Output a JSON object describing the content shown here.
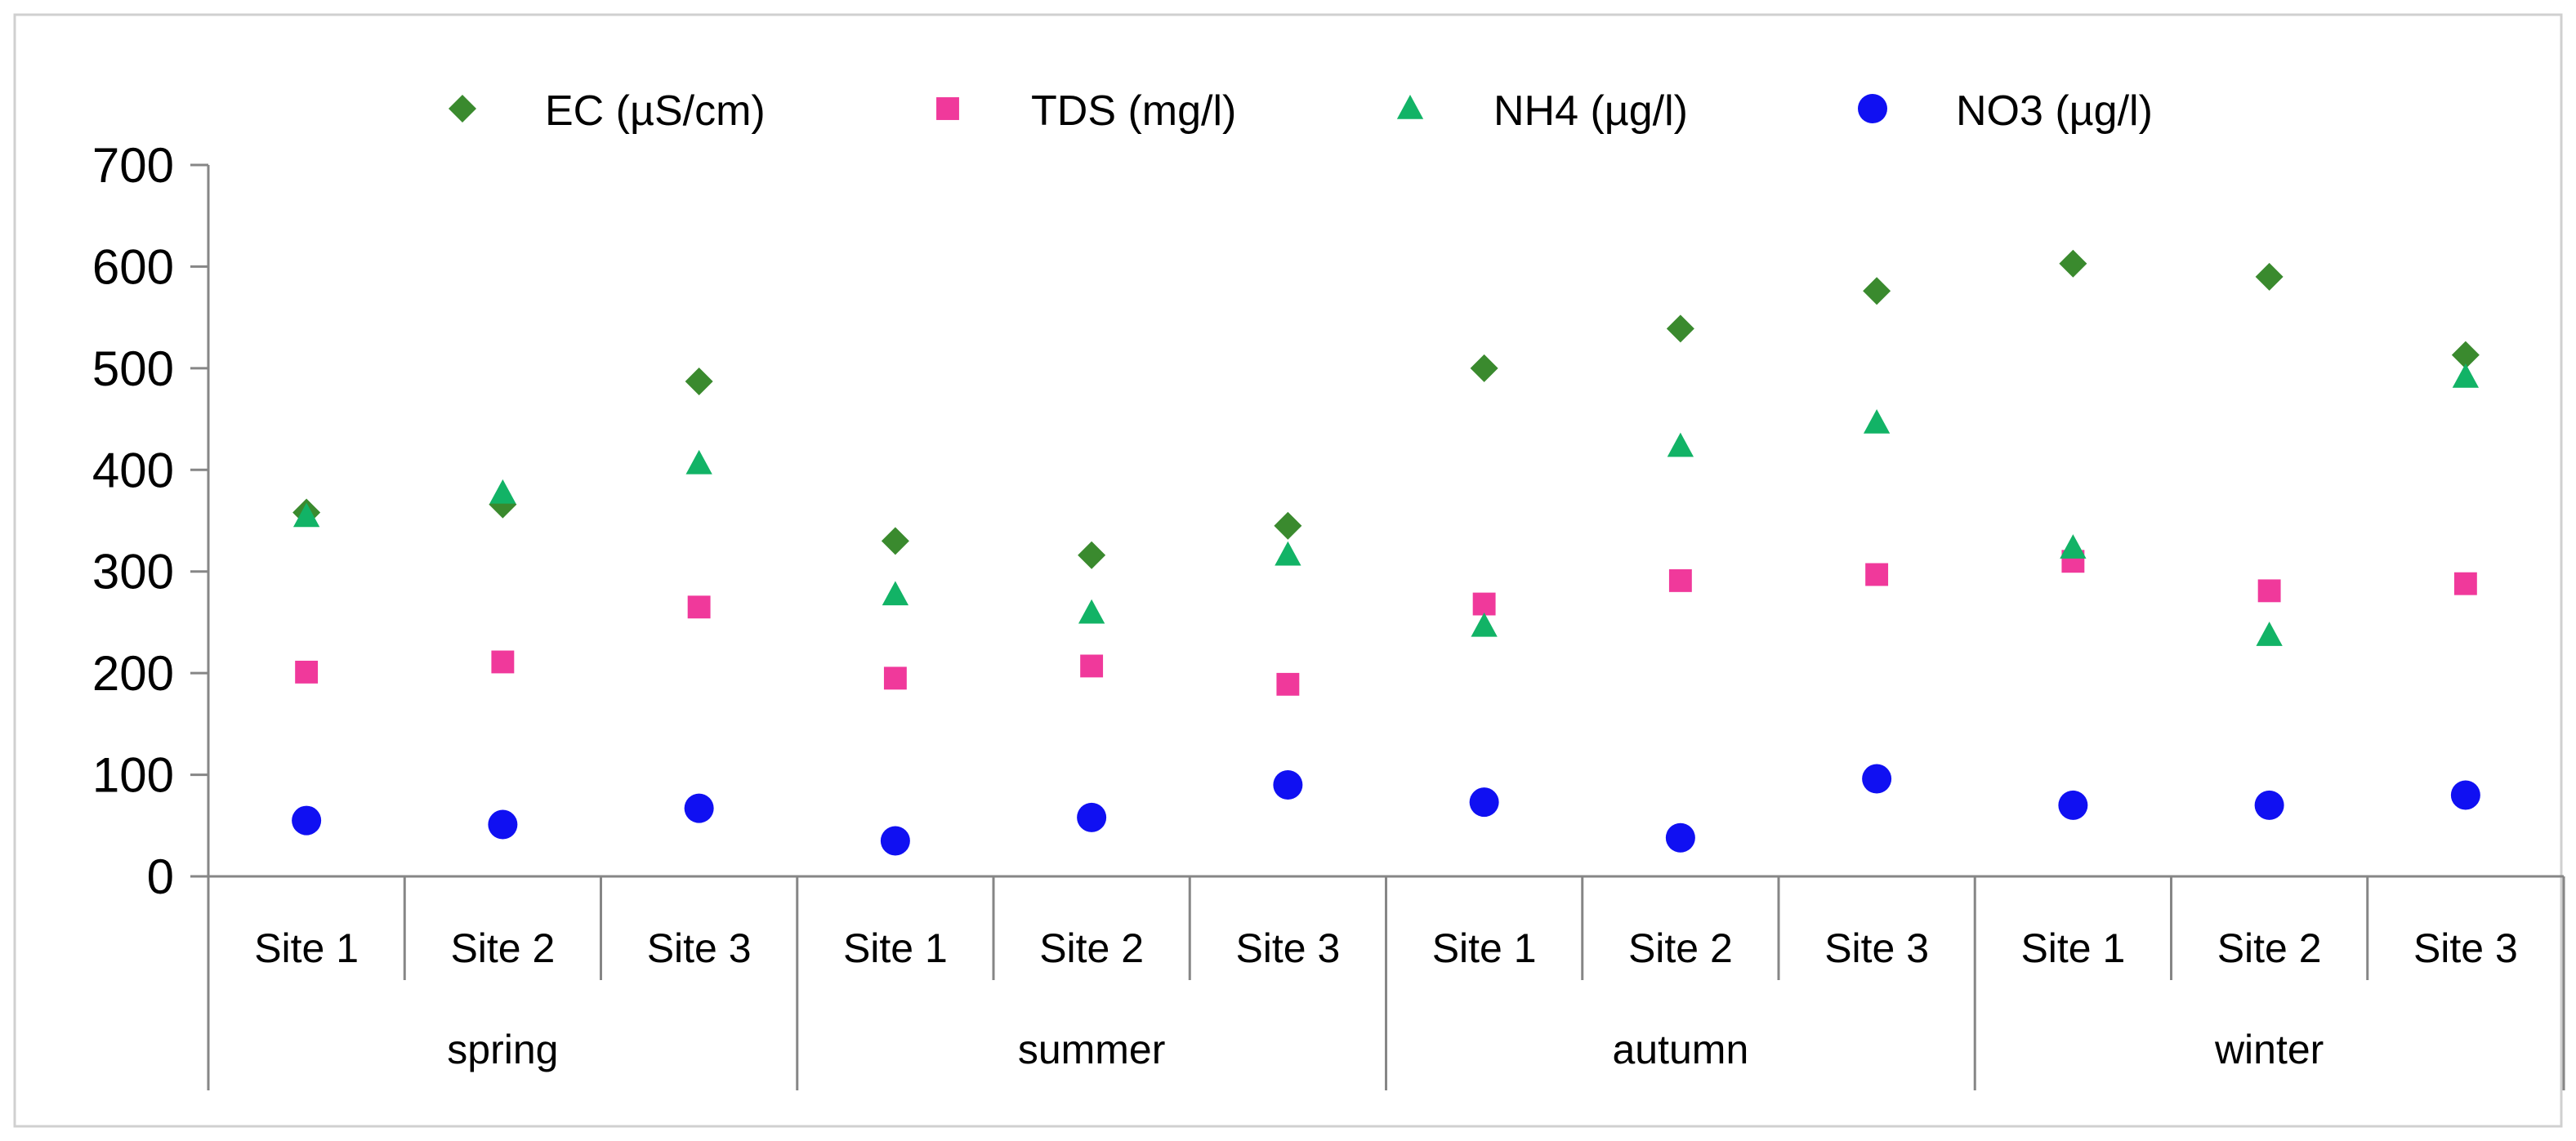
{
  "chart_data": {
    "type": "scatter",
    "title": "",
    "xlabel": "",
    "ylabel": "",
    "ylim": [
      0,
      700
    ],
    "yticks": [
      0,
      100,
      200,
      300,
      400,
      500,
      600,
      700
    ],
    "grid": false,
    "legend_position": "top",
    "seasons": [
      "spring",
      "summer",
      "autumn",
      "winter"
    ],
    "sites": [
      "Site 1",
      "Site 2",
      "Site 3"
    ],
    "series": [
      {
        "name": "EC (µS/cm)",
        "marker": "diamond",
        "color": "#3a8a2e",
        "values": [
          358,
          366,
          487,
          330,
          316,
          345,
          500,
          539,
          576,
          603,
          590,
          513
        ]
      },
      {
        "name": "TDS (mg/l)",
        "marker": "square",
        "color": "#f0399b",
        "values": [
          201,
          211,
          265,
          195,
          207,
          189,
          268,
          291,
          297,
          310,
          281,
          288
        ]
      },
      {
        "name": "NH4 (µg/l)",
        "marker": "triangle",
        "color": "#12b366",
        "values": [
          354,
          377,
          406,
          277,
          259,
          316,
          246,
          423,
          446,
          323,
          237,
          491
        ]
      },
      {
        "name": "NO3  (µg/l)",
        "marker": "circle",
        "color": "#1010f2",
        "values": [
          55,
          51,
          67,
          35,
          58,
          90,
          73,
          38,
          96,
          70,
          70,
          80
        ]
      }
    ]
  }
}
